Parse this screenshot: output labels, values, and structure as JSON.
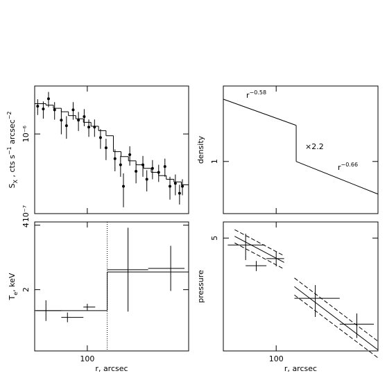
{
  "chart_data": [
    {
      "type": "errorbar",
      "log_x": true,
      "log_y": true,
      "ylabel_parts": [
        {
          "text": "S"
        },
        {
          "text": "X",
          "shift": "sub"
        },
        {
          "text": " , cts s"
        },
        {
          "text": "−1",
          "shift": "super"
        },
        {
          "text": " arcsec"
        },
        {
          "text": "−2",
          "shift": "super"
        }
      ],
      "xlim": [
        50,
        380
      ],
      "ylim": [
        1e-07,
        4e-06
      ],
      "xticks": [
        100
      ],
      "xtick_labels": false,
      "yticks": [
        {
          "value": 1e-07,
          "label": "10⁻⁷"
        },
        {
          "value": 1e-06,
          "label": "10⁻⁶"
        }
      ],
      "points": {
        "marker": true,
        "x": [
          52,
          56,
          60,
          65,
          71,
          76,
          83,
          89,
          96,
          102,
          110,
          119,
          128,
          144,
          155,
          161,
          175,
          190,
          208,
          219,
          236,
          256,
          278,
          297,
          319,
          337,
          350
        ],
        "values": [
          2.23e-06,
          2.06e-06,
          2.77e-06,
          2.01e-06,
          1.49e-06,
          1.27e-06,
          2.01e-06,
          1.49e-06,
          1.65e-06,
          1.22e-06,
          1.22e-06,
          9e-07,
          6.7e-07,
          4.9e-07,
          4.1e-07,
          2.2e-07,
          5.5e-07,
          3.4e-07,
          4.1e-07,
          2.7e-07,
          3.7e-07,
          3.3e-07,
          3.9e-07,
          2.2e-07,
          2.4e-07,
          1.8e-07,
          2.2e-07
        ],
        "errors": [
          5e-07,
          5e-07,
          6e-07,
          5e-07,
          5e-07,
          4e-07,
          5e-07,
          4e-07,
          4e-07,
          3e-07,
          3e-07,
          2.5e-07,
          2e-07,
          1.5e-07,
          1.2e-07,
          1e-07,
          1.5e-07,
          1e-07,
          1.2e-07,
          8e-08,
          1e-07,
          8e-08,
          1e-07,
          7e-08,
          7e-08,
          5e-08,
          5e-08
        ]
      },
      "steps": {
        "bins": [
          50,
          58,
          64,
          71,
          78,
          86,
          95,
          105,
          116,
          128,
          141,
          156,
          172,
          190,
          210,
          232,
          256,
          283,
          313,
          345,
          380
        ],
        "values": [
          2.4e-06,
          2.3e-06,
          2.1e-06,
          1.9e-06,
          1.7e-06,
          1.55e-06,
          1.4e-06,
          1.25e-06,
          1.1e-06,
          9.5e-07,
          6e-07,
          5.2e-07,
          4.6e-07,
          4.1e-07,
          3.7e-07,
          3.3e-07,
          3e-07,
          2.7e-07,
          2.5e-07,
          2.3e-07
        ]
      }
    },
    {
      "type": "line",
      "log_x": true,
      "log_y": true,
      "ylabel_parts": [
        {
          "text": "density"
        }
      ],
      "xlim": [
        50,
        380
      ],
      "ylim": [
        0.32,
        5.2
      ],
      "xticks": [
        100
      ],
      "xtick_labels": false,
      "yticks": [
        1
      ],
      "lines": [
        {
          "x": [
            50,
            130
          ],
          "values": [
            3.9,
            2.2
          ]
        },
        {
          "x": [
            130,
            380
          ],
          "values": [
            1,
            0.49
          ]
        }
      ],
      "annotations": [
        {
          "text": "r",
          "sup": "−0.58"
        },
        {
          "text": "×2.2"
        },
        {
          "text": "r",
          "sup": "−0.66"
        }
      ]
    },
    {
      "type": "errorbar",
      "log_x": true,
      "log_y": false,
      "ylabel_parts": [
        {
          "text": "T"
        },
        {
          "text": "e",
          "shift": "sub"
        },
        {
          "text": ", keV"
        }
      ],
      "xlabel": "r, arcsec",
      "xlim": [
        50,
        380
      ],
      "ylim": [
        0.1,
        4.1
      ],
      "xticks": [
        100
      ],
      "xtick_labels": true,
      "yticks": [
        2,
        4
      ],
      "boundary": 130,
      "points": {
        "marker": false,
        "x": [
          58,
          77,
          100,
          171,
          300
        ],
        "values": [
          1.35,
          1.14,
          1.46,
          2.62,
          2.66
        ],
        "errors": [
          0.32,
          0.15,
          0.1,
          1.3,
          0.7
        ],
        "x_lo": [
          51,
          71,
          95,
          130,
          223
        ],
        "x_hi": [
          71,
          95,
          111,
          223,
          360
        ]
      },
      "steps": {
        "bins": [
          50,
          130,
          380
        ],
        "values": [
          1.35,
          2.55
        ]
      }
    },
    {
      "type": "errorbar",
      "log_x": true,
      "log_y": true,
      "ylabel_parts": [
        {
          "text": "pressure"
        }
      ],
      "xlabel": "r, arcsec",
      "xlim": [
        50,
        380
      ],
      "ylim": [
        0.43,
        7.1
      ],
      "xticks": [
        100
      ],
      "xtick_labels": true,
      "yticks": [
        5
      ],
      "points": {
        "marker": false,
        "x": [
          67,
          77,
          100,
          167,
          288
        ],
        "values": [
          4.3,
          2.74,
          3.2,
          1.35,
          0.77
        ],
        "errors": [
          1.2,
          0.3,
          0.5,
          0.45,
          0.2
        ],
        "x_lo": [
          53,
          67,
          88,
          127,
          230
        ],
        "x_hi": [
          86,
          88,
          111,
          230,
          360
        ]
      },
      "fits": [
        {
          "x": [
            58,
            111
          ],
          "values": [
            5.2,
            2.95
          ],
          "lower": [
            4.5,
            2.55
          ],
          "upper": [
            6.0,
            3.4
          ]
        },
        {
          "x": [
            127,
            380
          ],
          "values": [
            1.74,
            0.44
          ],
          "lower": [
            1.45,
            0.37
          ],
          "upper": [
            2.1,
            0.53
          ]
        }
      ]
    }
  ]
}
